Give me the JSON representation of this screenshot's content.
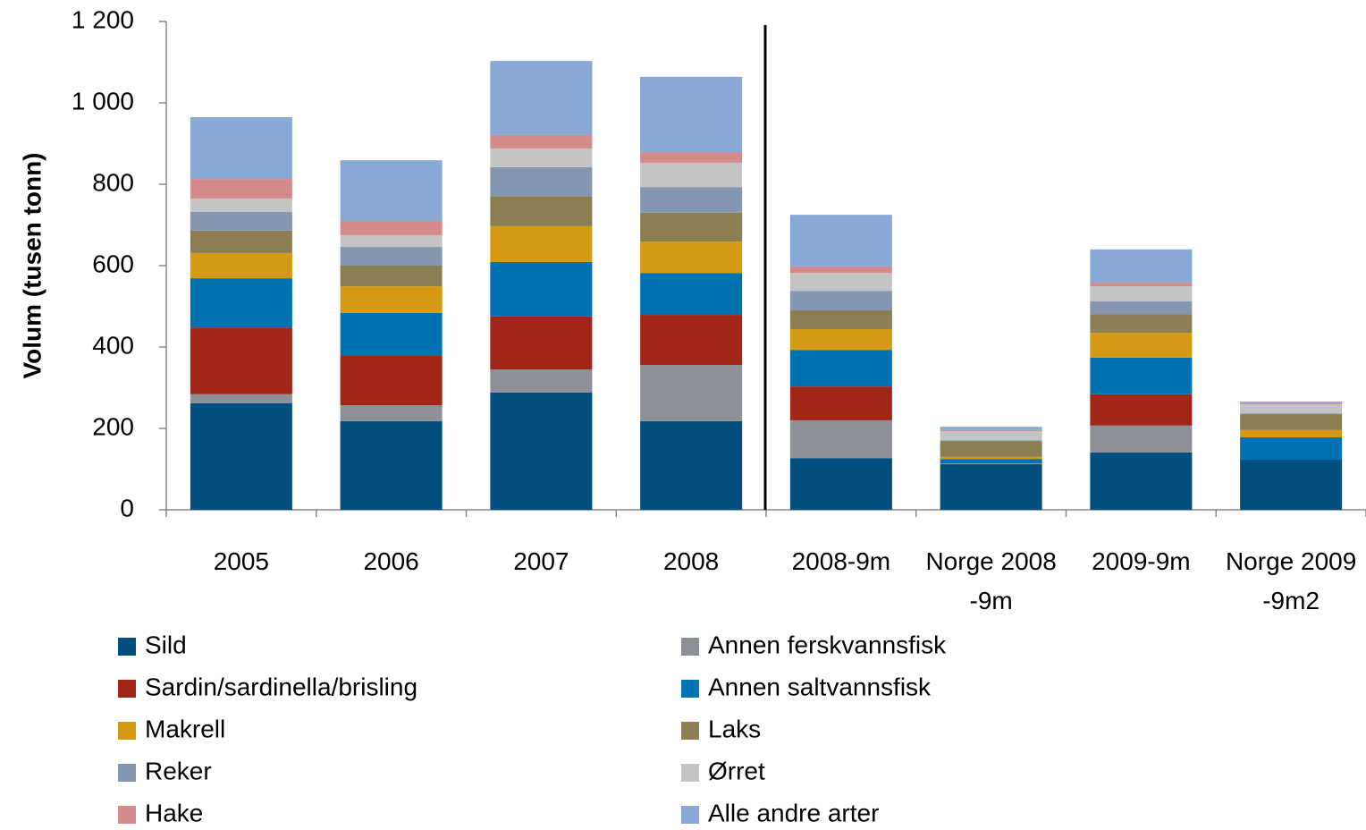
{
  "chart_data": {
    "type": "stacked_bar",
    "y_label": "Volum (tusen tonn)",
    "categories": [
      "2005",
      "2006",
      "2007",
      "2008",
      "2008-9m",
      "Norge 2008 -9m",
      "2009-9m",
      "Norge 2009 -9m2"
    ],
    "series": [
      {
        "name": "Sild",
        "color": "#004f7f",
        "values": [
          262,
          218,
          288,
          218,
          127,
          112,
          141,
          123
        ]
      },
      {
        "name": "Annen ferskvannsfisk",
        "color": "#8d9096",
        "values": [
          22,
          39,
          57,
          138,
          93,
          2,
          66,
          0
        ]
      },
      {
        "name": "Sardin/sardinella/brisling",
        "color": "#a12618",
        "values": [
          164,
          123,
          130,
          123,
          83,
          0,
          77,
          0
        ]
      },
      {
        "name": "Annen saltvannsfisk",
        "color": "#0072b2",
        "values": [
          121,
          104,
          134,
          103,
          90,
          11,
          90,
          55
        ]
      },
      {
        "name": "Makrell",
        "color": "#d69913",
        "values": [
          62,
          65,
          88,
          77,
          51,
          5,
          61,
          18
        ]
      },
      {
        "name": "Laks",
        "color": "#8b7e52",
        "values": [
          55,
          51,
          74,
          71,
          46,
          39,
          46,
          39
        ]
      },
      {
        "name": "Reker",
        "color": "#8496b0",
        "values": [
          46,
          46,
          71,
          63,
          48,
          2,
          31,
          2
        ]
      },
      {
        "name": "Ørret",
        "color": "#c4c4c4",
        "values": [
          33,
          29,
          46,
          60,
          44,
          22,
          37,
          22
        ]
      },
      {
        "name": "Hake",
        "color": "#d4898a",
        "values": [
          48,
          35,
          33,
          26,
          16,
          3,
          9,
          3
        ]
      },
      {
        "name": "Alle andre arter",
        "color": "#88a9d6",
        "values": [
          152,
          149,
          182,
          185,
          127,
          8,
          82,
          4
        ]
      }
    ],
    "ylim": [
      0,
      1200
    ],
    "yticks": [
      0,
      200,
      400,
      600,
      800,
      {
        "value": 1000,
        "label": "1 000"
      },
      {
        "value": 1200,
        "label": "1 200"
      }
    ],
    "grid": false,
    "legend": "bottom"
  }
}
